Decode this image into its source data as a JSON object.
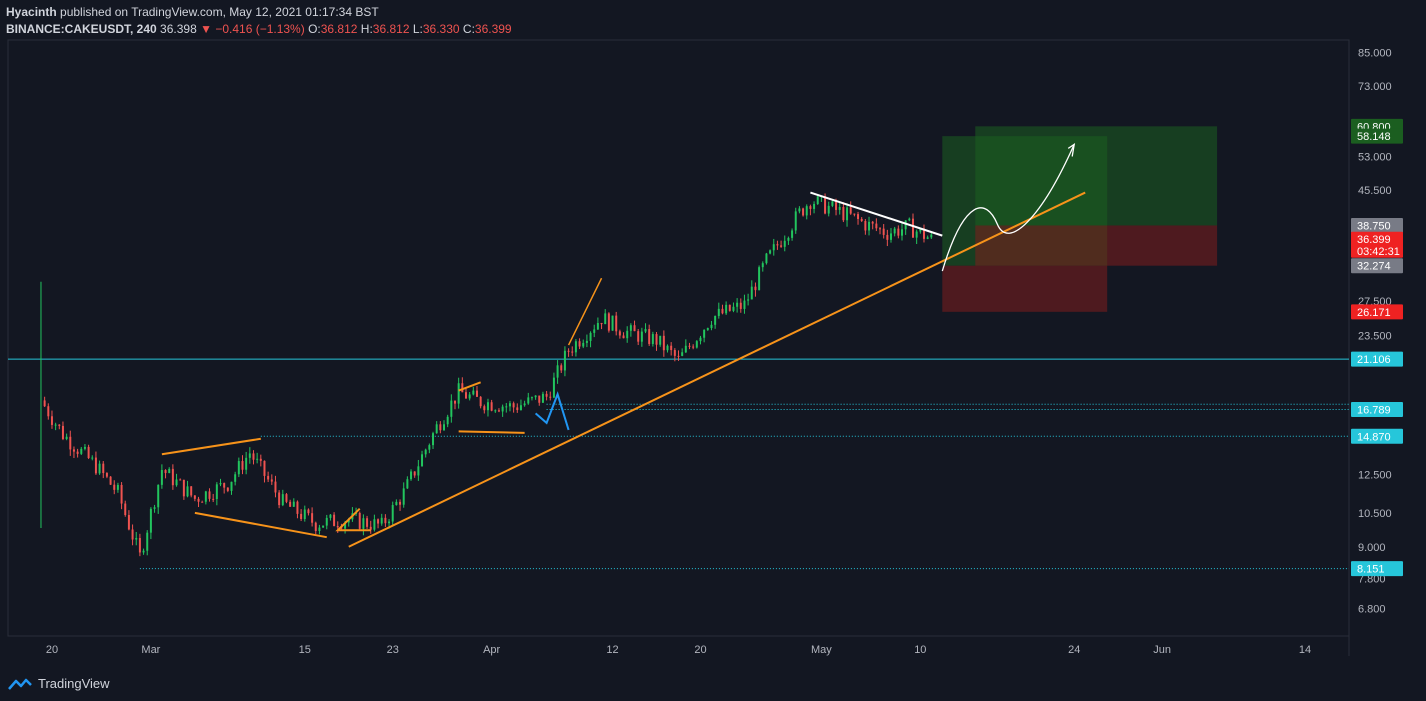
{
  "header": {
    "author": "Hyacinth",
    "published_text": "published on TradingView.com, May 12, 2021 01:17:34 BST",
    "symbol": "BINANCE:CAKEUSDT, 240",
    "last": "36.398",
    "change": "−0.416 (−1.13%)",
    "o_label": "O:",
    "o": "36.812",
    "h_label": "H:",
    "h": "36.812",
    "l_label": "L:",
    "l": "36.330",
    "c_label": "C:",
    "c": "36.399"
  },
  "footer": {
    "brand": "TradingView"
  },
  "colors": {
    "background": "#131722",
    "up": "#26a69a",
    "candle_up": "#22c55e",
    "candle_down": "#ef5350",
    "orange": "#f7931a",
    "cyan": "#26c6da",
    "blue": "#2196f3",
    "target_zone": "#1b5e20",
    "stop_zone": "#7f1d1d"
  },
  "chart_data": {
    "type": "candlestick",
    "y_scale": "log",
    "ylim": [
      6.0,
      90.0
    ],
    "y_ticks": [
      "85.000",
      "73.000",
      "60.800",
      "53.000",
      "45.500",
      "38.750",
      "32.274",
      "27.500",
      "23.500",
      "21.106",
      "16.789",
      "14.870",
      "12.500",
      "10.500",
      "9.000",
      "8.151",
      "7.800",
      "6.800"
    ],
    "x_tick_labels": [
      "20",
      "Mar",
      "15",
      "23",
      "Apr",
      "12",
      "20",
      "May",
      "10",
      "24",
      "Jun",
      "14"
    ],
    "x_range": [
      "2021-02-16",
      "2021-06-18"
    ],
    "price_badges": [
      {
        "value": "60.800",
        "label": "60.800",
        "color": "#1b5e20"
      },
      {
        "value": "58.148",
        "label": "58.148",
        "color": "#1b5e20"
      },
      {
        "value": "38.750",
        "label": "38.750",
        "color": "#787b86"
      },
      {
        "value": "36.399",
        "label": "36.399",
        "sub": "03:42:31",
        "color": "#ef2222"
      },
      {
        "value": "32.274",
        "label": "32.274",
        "color": "#787b86"
      },
      {
        "value": "26.171",
        "label": "26.171",
        "color": "#ef2222"
      },
      {
        "value": "21.106",
        "label": "21.106",
        "color": "#26c6da"
      },
      {
        "value": "16.789",
        "label": "16.789",
        "color": "#26c6da"
      },
      {
        "value": "14.870",
        "label": "14.870",
        "color": "#26c6da"
      },
      {
        "value": "8.151",
        "label": "8.151",
        "color": "#26c6da"
      }
    ],
    "horizontal_levels": [
      {
        "value": 21.106,
        "style": "solid"
      },
      {
        "value": 17.2,
        "style": "dotted",
        "from": "2021-04-06"
      },
      {
        "value": 16.789,
        "style": "dotted",
        "from": "2021-04-06"
      },
      {
        "value": 14.87,
        "style": "dotted",
        "from": "2021-03-11"
      },
      {
        "value": 8.151,
        "style": "dotted",
        "from": "2021-02-28"
      }
    ],
    "candles_sketch": [
      {
        "d": "2021-02-19",
        "c": 17.5
      },
      {
        "d": "2021-02-21",
        "c": 15.0
      },
      {
        "d": "2021-02-24",
        "c": 13.0
      },
      {
        "d": "2021-02-26",
        "c": 11.5
      },
      {
        "d": "2021-02-28",
        "c": 8.6
      },
      {
        "d": "2021-03-02",
        "c": 12.8
      },
      {
        "d": "2021-03-05",
        "c": 11.2
      },
      {
        "d": "2021-03-08",
        "c": 12.0
      },
      {
        "d": "2021-03-10",
        "c": 13.8
      },
      {
        "d": "2021-03-13",
        "c": 11.0
      },
      {
        "d": "2021-03-16",
        "c": 10.0
      },
      {
        "d": "2021-03-19",
        "c": 10.2
      },
      {
        "d": "2021-03-22",
        "c": 9.9
      },
      {
        "d": "2021-03-24",
        "c": 11.5
      },
      {
        "d": "2021-03-27",
        "c": 15.5
      },
      {
        "d": "2021-03-29",
        "c": 18.2
      },
      {
        "d": "2021-03-31",
        "c": 17.4
      },
      {
        "d": "2021-04-03",
        "c": 17.0
      },
      {
        "d": "2021-04-06",
        "c": 17.8
      },
      {
        "d": "2021-04-08",
        "c": 22.0
      },
      {
        "d": "2021-04-11",
        "c": 25.5
      },
      {
        "d": "2021-04-13",
        "c": 24.0
      },
      {
        "d": "2021-04-16",
        "c": 23.0
      },
      {
        "d": "2021-04-18",
        "c": 21.0
      },
      {
        "d": "2021-04-21",
        "c": 25.5
      },
      {
        "d": "2021-04-24",
        "c": 27.0
      },
      {
        "d": "2021-04-26",
        "c": 33.0
      },
      {
        "d": "2021-04-29",
        "c": 41.0
      },
      {
        "d": "2021-04-30",
        "c": 43.5
      },
      {
        "d": "2021-05-03",
        "c": 41.0
      },
      {
        "d": "2021-05-05",
        "c": 39.0
      },
      {
        "d": "2021-05-07",
        "c": 37.5
      },
      {
        "d": "2021-05-09",
        "c": 38.5
      },
      {
        "d": "2021-05-11",
        "c": 36.4
      }
    ],
    "drawings": {
      "uptrend_line": {
        "from": {
          "d": "2021-03-19",
          "v": 9.0
        },
        "to": {
          "d": "2021-05-25",
          "v": 45.0
        },
        "color": "#f7931a"
      },
      "downtrend_line": {
        "from": {
          "d": "2021-04-30",
          "v": 45.0
        },
        "to": {
          "d": "2021-05-12",
          "v": 37.0
        },
        "color": "#ffffff"
      },
      "long_position_1": {
        "from": "2021-05-12",
        "to": "2021-05-27",
        "entry": 32.274,
        "target": 58.148,
        "stop": 26.171
      },
      "long_position_2": {
        "from": "2021-05-15",
        "to": "2021-06-06",
        "entry": 38.75,
        "target": 60.8,
        "stop": 32.274
      }
    }
  }
}
